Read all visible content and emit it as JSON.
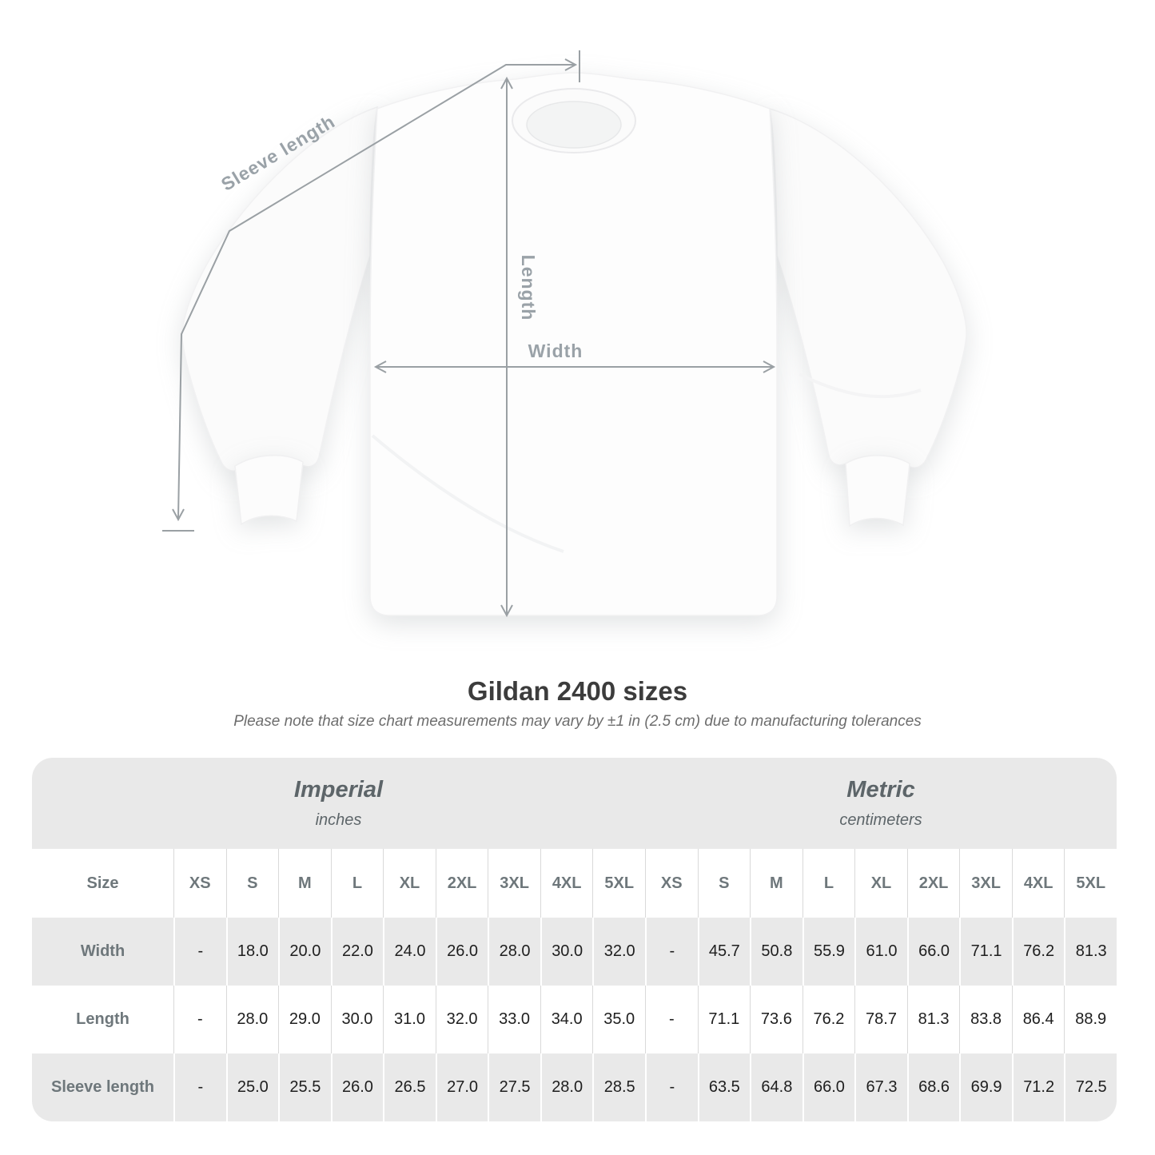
{
  "page": {
    "title": "Gildan 2400 sizes",
    "subtitle": "Please note that size chart measurements may vary by ±1 in (2.5 cm) due to manufacturing tolerances"
  },
  "diagram": {
    "sleeve_length_label": "Sleeve length",
    "length_label": "Length",
    "width_label": "Width"
  },
  "size_table": {
    "groups": [
      {
        "label": "Imperial",
        "unit": "inches"
      },
      {
        "label": "Metric",
        "unit": "centimeters"
      }
    ],
    "corner_header": "Size",
    "sizes": [
      "XS",
      "S",
      "M",
      "L",
      "XL",
      "2XL",
      "3XL",
      "4XL",
      "5XL"
    ],
    "rows": [
      {
        "label": "Width",
        "imperial": [
          "-",
          "18.0",
          "20.0",
          "22.0",
          "24.0",
          "26.0",
          "28.0",
          "30.0",
          "32.0"
        ],
        "metric": [
          "-",
          "45.7",
          "50.8",
          "55.9",
          "61.0",
          "66.0",
          "71.1",
          "76.2",
          "81.3"
        ]
      },
      {
        "label": "Length",
        "imperial": [
          "-",
          "28.0",
          "29.0",
          "30.0",
          "31.0",
          "32.0",
          "33.0",
          "34.0",
          "35.0"
        ],
        "metric": [
          "-",
          "71.1",
          "73.6",
          "76.2",
          "78.7",
          "81.3",
          "83.8",
          "86.4",
          "88.9"
        ]
      },
      {
        "label": "Sleeve length",
        "imperial": [
          "-",
          "25.0",
          "25.5",
          "26.0",
          "26.5",
          "27.0",
          "27.5",
          "28.0",
          "28.5"
        ],
        "metric": [
          "-",
          "63.5",
          "64.8",
          "66.0",
          "67.3",
          "68.6",
          "69.9",
          "71.2",
          "72.5"
        ]
      }
    ]
  },
  "chart_data": {
    "type": "table",
    "title": "Gildan 2400 sizes",
    "note": "Please note that size chart measurements may vary by ±1 in (2.5 cm) due to manufacturing tolerances",
    "unit_groups": [
      "Imperial (inches)",
      "Metric (centimeters)"
    ],
    "sizes": [
      "XS",
      "S",
      "M",
      "L",
      "XL",
      "2XL",
      "3XL",
      "4XL",
      "5XL"
    ],
    "rows": [
      {
        "measurement": "Width",
        "imperial_in": [
          null,
          18.0,
          20.0,
          22.0,
          24.0,
          26.0,
          28.0,
          30.0,
          32.0
        ],
        "metric_cm": [
          null,
          45.7,
          50.8,
          55.9,
          61.0,
          66.0,
          71.1,
          76.2,
          81.3
        ]
      },
      {
        "measurement": "Length",
        "imperial_in": [
          null,
          28.0,
          29.0,
          30.0,
          31.0,
          32.0,
          33.0,
          34.0,
          35.0
        ],
        "metric_cm": [
          null,
          71.1,
          73.6,
          76.2,
          78.7,
          81.3,
          83.8,
          86.4,
          88.9
        ]
      },
      {
        "measurement": "Sleeve length",
        "imperial_in": [
          null,
          25.0,
          25.5,
          26.0,
          26.5,
          27.0,
          27.5,
          28.0,
          28.5
        ],
        "metric_cm": [
          null,
          63.5,
          64.8,
          66.0,
          67.3,
          68.6,
          69.9,
          71.2,
          72.5
        ]
      }
    ]
  },
  "colors": {
    "measurement_line": "#9aa0a4",
    "measurement_label": "#9aa2a8",
    "table_band_gray": "#e9e9e9",
    "header_text": "#6e777b",
    "data_text": "#1e1e1e",
    "title_text": "#3c3c3c",
    "subtitle_text": "#6d6d6d",
    "group_header_text": "#5d6569"
  }
}
